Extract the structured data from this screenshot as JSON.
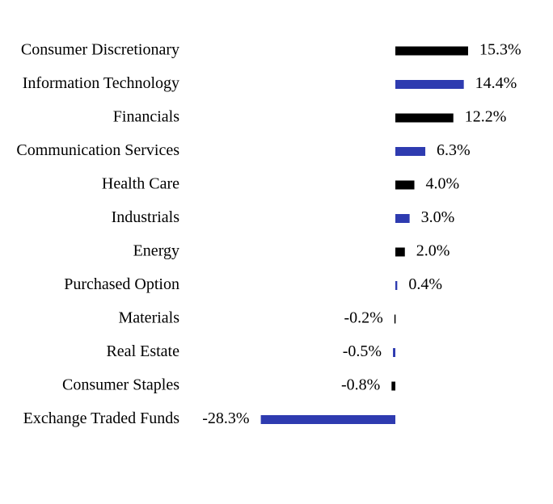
{
  "chart_data": {
    "type": "bar",
    "orientation": "horizontal",
    "categories": [
      "Consumer Discretionary",
      "Information Technology",
      "Financials",
      "Communication Services",
      "Health Care",
      "Industrials",
      "Energy",
      "Purchased Option",
      "Materials",
      "Real Estate",
      "Consumer Staples",
      "Exchange Traded Funds"
    ],
    "values": [
      15.3,
      14.4,
      12.2,
      6.3,
      4.0,
      3.0,
      2.0,
      0.4,
      -0.2,
      -0.5,
      -0.8,
      -28.3
    ],
    "value_labels": [
      "15.3%",
      "14.4%",
      "12.2%",
      "6.3%",
      "4.0%",
      "3.0%",
      "2.0%",
      "0.4%",
      "-0.2%",
      "-0.5%",
      "-0.8%",
      "-28.3%"
    ],
    "colors": [
      "#000000",
      "#2e3bb0",
      "#000000",
      "#2e3bb0",
      "#000000",
      "#2e3bb0",
      "#000000",
      "#2e3bb0",
      "#000000",
      "#2e3bb0",
      "#000000",
      "#2e3bb0"
    ]
  }
}
